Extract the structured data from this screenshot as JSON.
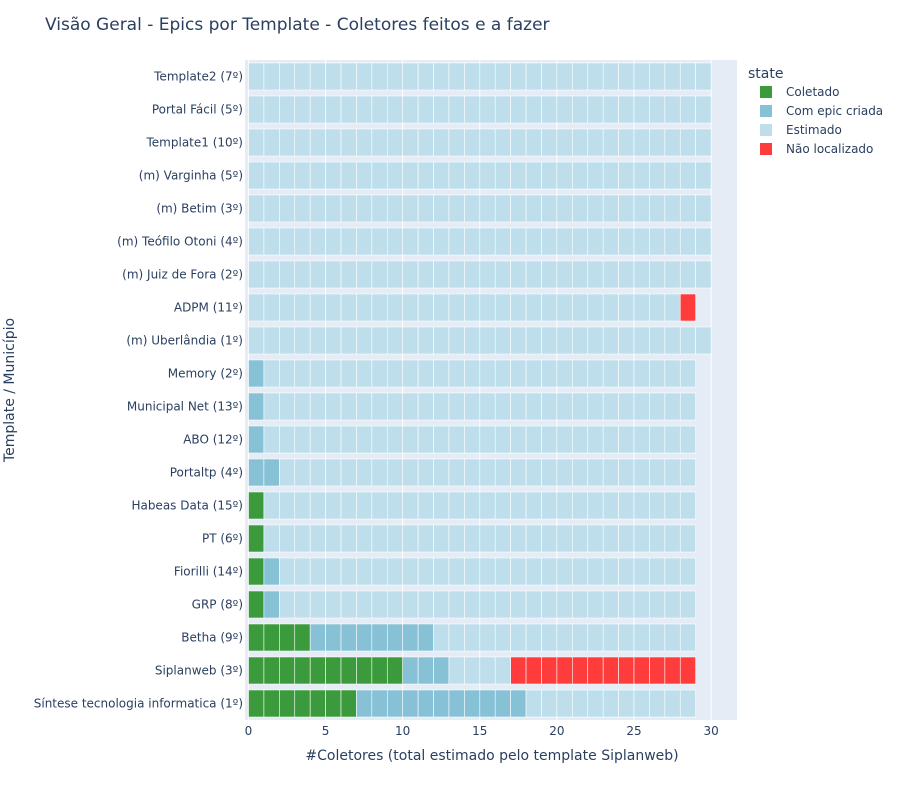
{
  "chart_data": {
    "type": "bar",
    "orientation": "horizontal",
    "barmode": "stack",
    "title": "Visão Geral - Epics por Template - Coletores feitos e a fazer",
    "xlabel": "#Coletores (total estimado pelo template Siplanweb)",
    "ylabel": "Template / Município",
    "xlim": [
      0,
      31.5
    ],
    "xticks": [
      0,
      5,
      10,
      15,
      20,
      25,
      30
    ],
    "grid": true,
    "legend": {
      "title": "state",
      "placement": "right"
    },
    "categories": [
      "Template2 (7º)",
      "Portal Fácil (5º)",
      "Template1 (10º)",
      "(m) Varginha (5º)",
      "(m) Betim (3º)",
      "(m) Teófilo Otoni (4º)",
      "(m) Juiz de Fora (2º)",
      "ADPM (11º)",
      "(m) Uberlândia (1º)",
      "Memory (2º)",
      "Municipal Net (13º)",
      "ABO (12º)",
      "Portaltp (4º)",
      "Habeas Data (15º)",
      "PT (6º)",
      "Fiorilli (14º)",
      "GRP (8º)",
      "Betha (9º)",
      "Siplanweb (3º)",
      "Síntese tecnologia informatica (1º)"
    ],
    "series": [
      {
        "name": "Coletado",
        "color": "#3b9a3b",
        "values": [
          0,
          0,
          0,
          0,
          0,
          0,
          0,
          0,
          0,
          0,
          0,
          0,
          0,
          1,
          1,
          1,
          1,
          4,
          10,
          7
        ]
      },
      {
        "name": "Com epic criada",
        "color": "#86c1d6",
        "values": [
          0,
          0,
          0,
          0,
          0,
          0,
          0,
          0,
          0,
          1,
          1,
          1,
          2,
          0,
          0,
          1,
          1,
          8,
          3,
          11
        ]
      },
      {
        "name": "Estimado",
        "color": "#bddeea",
        "values": [
          30,
          30,
          30,
          30,
          30,
          30,
          30,
          28,
          30,
          28,
          28,
          28,
          27,
          28,
          28,
          27,
          27,
          17,
          4,
          11
        ]
      },
      {
        "name": "Não localizado",
        "color": "#ff3c3c",
        "values": [
          0,
          0,
          0,
          0,
          0,
          0,
          0,
          1,
          0,
          0,
          0,
          0,
          0,
          0,
          0,
          0,
          0,
          0,
          12,
          0
        ]
      }
    ]
  }
}
